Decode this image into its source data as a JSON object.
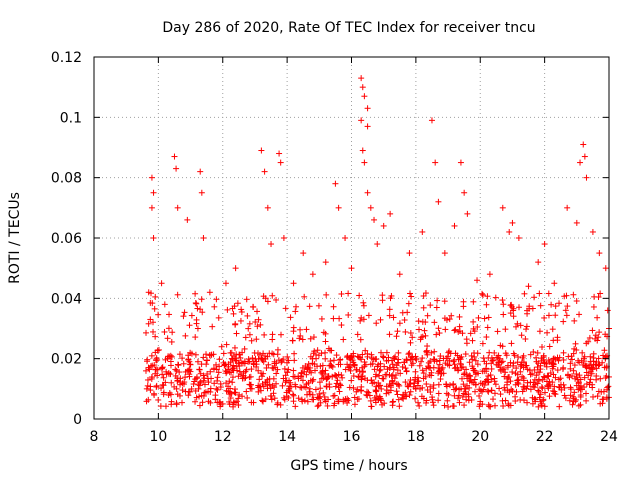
{
  "chart_data": {
    "type": "scatter",
    "title": "Day 286 of 2020, Rate Of TEC Index for receiver tncu",
    "xlabel": "GPS time / hours",
    "ylabel": "ROTI / TECUs",
    "xlim": [
      8,
      24
    ],
    "ylim": [
      0,
      0.12
    ],
    "xticks": [
      8,
      10,
      12,
      14,
      16,
      18,
      20,
      22,
      24
    ],
    "yticks": [
      0,
      0.02,
      0.04,
      0.06,
      0.08,
      0.1,
      0.12
    ],
    "grid": true,
    "marker": "+",
    "color": "#ff0000",
    "data_x_range": [
      9.6,
      24.0
    ],
    "series": [
      {
        "name": "ROTI",
        "note": "dense background band of ~0.004-0.04 TECU spanning 9.6-24 h; listed points are the distinct peaks and representative values",
        "points": [
          [
            9.7,
            0.042
          ],
          [
            9.75,
            0.033
          ],
          [
            9.8,
            0.07
          ],
          [
            9.8,
            0.08
          ],
          [
            9.85,
            0.075
          ],
          [
            9.85,
            0.06
          ],
          [
            10.1,
            0.045
          ],
          [
            10.2,
            0.038
          ],
          [
            10.5,
            0.087
          ],
          [
            10.55,
            0.083
          ],
          [
            10.6,
            0.07
          ],
          [
            10.9,
            0.066
          ],
          [
            11.3,
            0.082
          ],
          [
            11.35,
            0.075
          ],
          [
            11.4,
            0.06
          ],
          [
            11.6,
            0.042
          ],
          [
            12.1,
            0.045
          ],
          [
            12.4,
            0.05
          ],
          [
            13.2,
            0.089
          ],
          [
            13.3,
            0.082
          ],
          [
            13.4,
            0.07
          ],
          [
            13.5,
            0.058
          ],
          [
            13.75,
            0.088
          ],
          [
            13.8,
            0.085
          ],
          [
            13.9,
            0.06
          ],
          [
            14.2,
            0.045
          ],
          [
            14.5,
            0.055
          ],
          [
            14.8,
            0.048
          ],
          [
            15.2,
            0.052
          ],
          [
            15.5,
            0.078
          ],
          [
            15.6,
            0.07
          ],
          [
            15.8,
            0.06
          ],
          [
            16.0,
            0.05
          ],
          [
            16.3,
            0.113
          ],
          [
            16.35,
            0.11
          ],
          [
            16.4,
            0.107
          ],
          [
            16.5,
            0.103
          ],
          [
            16.3,
            0.099
          ],
          [
            16.5,
            0.097
          ],
          [
            16.35,
            0.089
          ],
          [
            16.4,
            0.085
          ],
          [
            16.5,
            0.075
          ],
          [
            16.6,
            0.07
          ],
          [
            16.7,
            0.066
          ],
          [
            16.8,
            0.058
          ],
          [
            17.0,
            0.064
          ],
          [
            17.2,
            0.068
          ],
          [
            17.5,
            0.048
          ],
          [
            17.8,
            0.055
          ],
          [
            18.2,
            0.062
          ],
          [
            18.5,
            0.099
          ],
          [
            18.6,
            0.085
          ],
          [
            18.7,
            0.072
          ],
          [
            18.9,
            0.055
          ],
          [
            19.2,
            0.064
          ],
          [
            19.4,
            0.085
          ],
          [
            19.5,
            0.075
          ],
          [
            19.6,
            0.068
          ],
          [
            19.9,
            0.046
          ],
          [
            20.3,
            0.048
          ],
          [
            20.7,
            0.07
          ],
          [
            20.9,
            0.062
          ],
          [
            21.0,
            0.065
          ],
          [
            21.2,
            0.06
          ],
          [
            21.5,
            0.044
          ],
          [
            21.8,
            0.052
          ],
          [
            22.0,
            0.058
          ],
          [
            22.3,
            0.045
          ],
          [
            22.7,
            0.07
          ],
          [
            23.0,
            0.065
          ],
          [
            23.1,
            0.085
          ],
          [
            23.2,
            0.091
          ],
          [
            23.25,
            0.087
          ],
          [
            23.3,
            0.08
          ],
          [
            23.5,
            0.062
          ],
          [
            23.7,
            0.055
          ],
          [
            23.9,
            0.05
          ],
          [
            24.0,
            0.03
          ],
          [
            9.9,
            0.015
          ],
          [
            10.4,
            0.012
          ],
          [
            11.0,
            0.018
          ],
          [
            11.8,
            0.01
          ],
          [
            12.6,
            0.022
          ],
          [
            13.1,
            0.016
          ],
          [
            14.1,
            0.012
          ],
          [
            14.9,
            0.02
          ],
          [
            15.4,
            0.014
          ],
          [
            16.1,
            0.018
          ],
          [
            17.1,
            0.022
          ],
          [
            18.0,
            0.01
          ],
          [
            18.8,
            0.015
          ],
          [
            19.8,
            0.012
          ],
          [
            20.5,
            0.018
          ],
          [
            21.3,
            0.014
          ],
          [
            22.1,
            0.011
          ],
          [
            22.9,
            0.016
          ],
          [
            23.6,
            0.013
          ],
          [
            12.0,
            0.005
          ],
          [
            16.6,
            0.006
          ],
          [
            19.0,
            0.004
          ],
          [
            21.9,
            0.005
          ]
        ]
      }
    ]
  }
}
